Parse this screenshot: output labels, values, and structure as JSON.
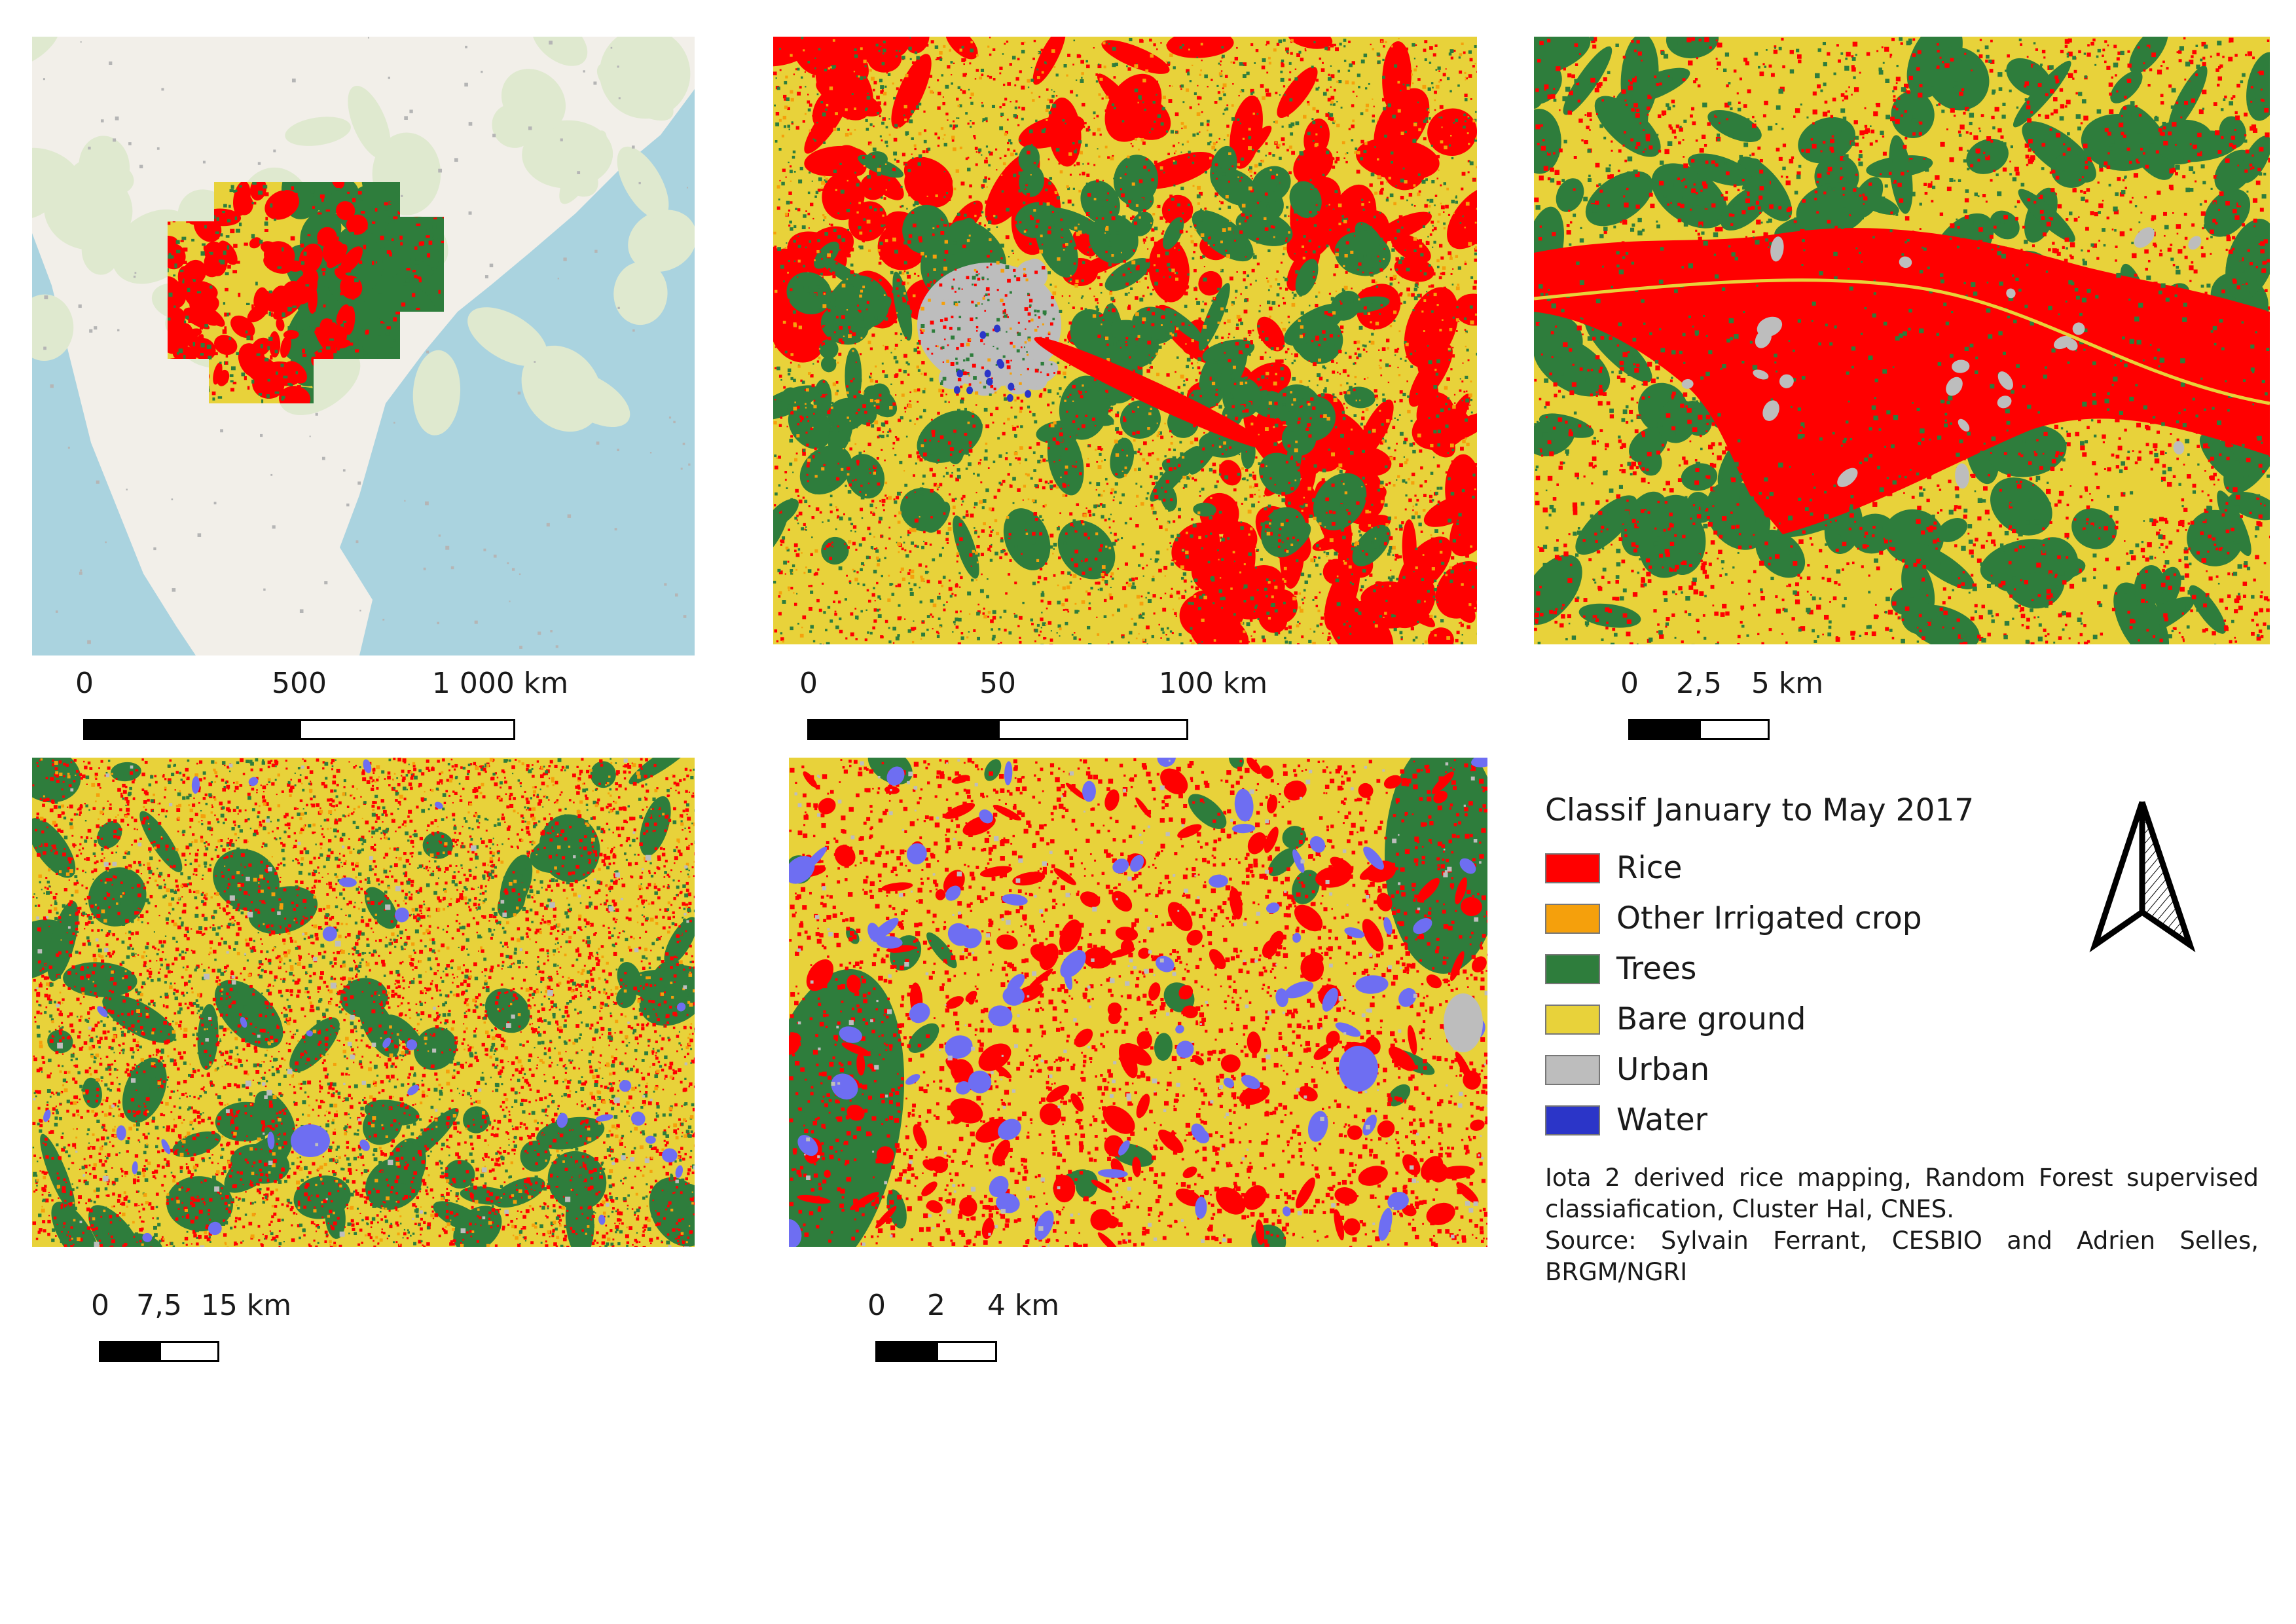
{
  "colors": {
    "rice": "#ff0000",
    "other_irrigated": "#f5a00c",
    "trees": "#2e7d3c",
    "bare_ground": "#e8d23a",
    "urban": "#bdbdbd",
    "water": "#2b35c8",
    "water_light": "#6e6ef2",
    "sea": "#aad3df",
    "land": "#f2efe9"
  },
  "panels": [
    {
      "id": "overview",
      "scale": {
        "labels": [
          "0",
          "500",
          "1 000 km"
        ]
      }
    },
    {
      "id": "regional",
      "scale": {
        "labels": [
          "0",
          "50",
          "100 km"
        ]
      }
    },
    {
      "id": "river",
      "scale": {
        "labels": [
          "0",
          "2,5",
          "5 km"
        ]
      }
    },
    {
      "id": "district",
      "scale": {
        "labels": [
          "0",
          "7,5",
          "15 km"
        ]
      }
    },
    {
      "id": "local",
      "scale": {
        "labels": [
          "0",
          "2",
          "4 km"
        ]
      }
    }
  ],
  "legend": {
    "title": "Classif January to May 2017",
    "items": [
      {
        "label": "Rice",
        "color": "#ff0000"
      },
      {
        "label": "Other Irrigated crop",
        "color": "#f5a00c"
      },
      {
        "label": "Trees",
        "color": "#2e7d3c"
      },
      {
        "label": "Bare ground",
        "color": "#e8d23a"
      },
      {
        "label": "Urban",
        "color": "#bdbdbd"
      },
      {
        "label": "Water",
        "color": "#2b35c8"
      }
    ]
  },
  "credits": {
    "line1": "Iota 2 derived rice mapping, Random Forest supervised classiafication, Cluster Hal, CNES.",
    "line2": "Source: Sylvain Ferrant, CESBIO and Adrien Selles, BRGM/NGRI"
  },
  "north_arrow_icon": "north-arrow-icon"
}
